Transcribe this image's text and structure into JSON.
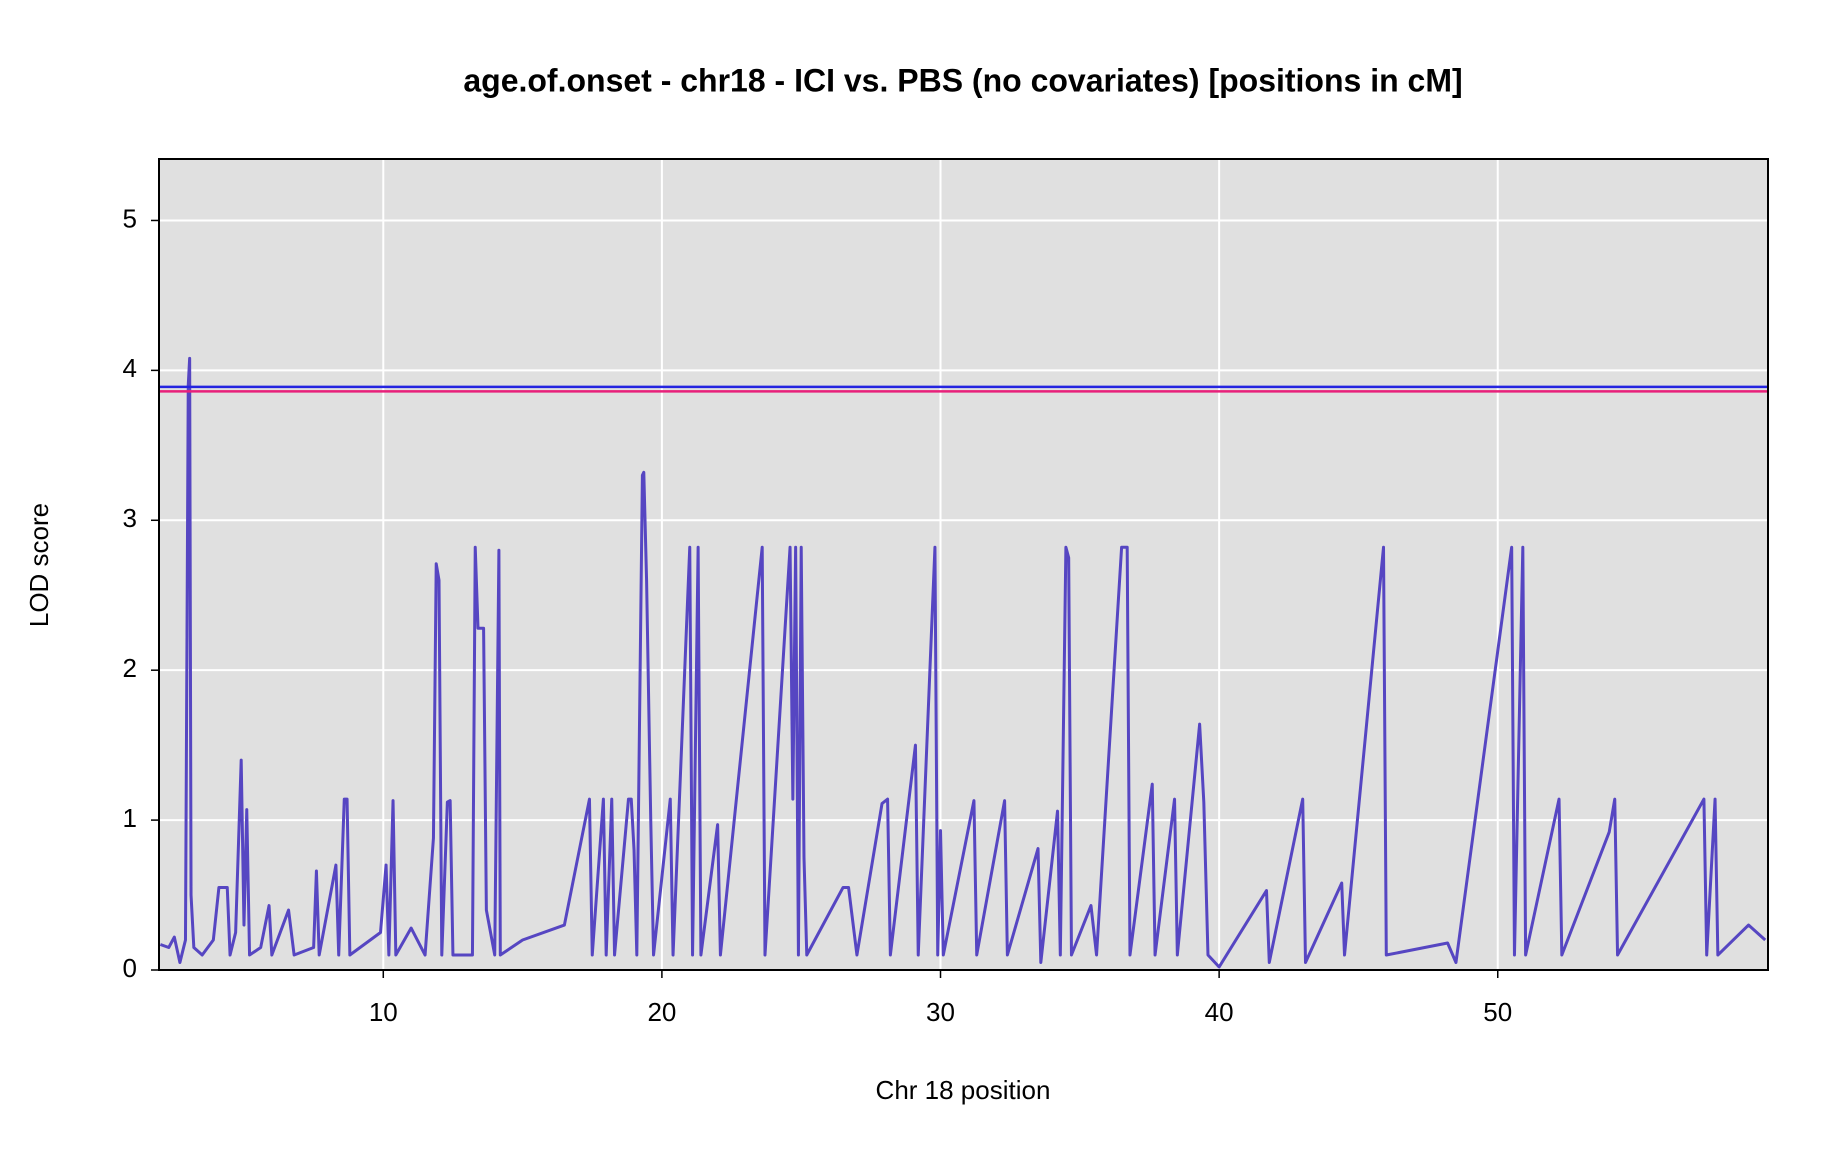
{
  "chart_data": {
    "type": "line",
    "title": "age.of.onset - chr18 - ICI vs. PBS (no covariates) [positions in cM]",
    "x_label": "Chr 18 position",
    "y_label": "LOD score",
    "color": "#5646c2",
    "x": [
      2.0,
      2.3,
      2.5,
      2.7,
      2.9,
      3.0,
      3.05,
      3.1,
      3.2,
      3.5,
      3.9,
      4.1,
      4.4,
      4.5,
      4.7,
      4.9,
      5.0,
      5.1,
      5.2,
      5.6,
      5.9,
      6.0,
      6.6,
      6.8,
      7.5,
      7.6,
      7.7,
      8.3,
      8.4,
      8.6,
      8.7,
      8.8,
      9.9,
      10.1,
      10.2,
      10.35,
      10.45,
      11.0,
      11.5,
      11.8,
      11.9,
      12.0,
      12.1,
      12.3,
      12.4,
      12.5,
      13.2,
      13.3,
      13.4,
      13.6,
      13.7,
      14.0,
      14.1,
      14.15,
      14.2,
      15.0,
      16.5,
      17.4,
      17.5,
      17.9,
      18.0,
      18.2,
      18.3,
      18.8,
      18.9,
      19.0,
      19.1,
      19.3,
      19.35,
      19.45,
      19.6,
      19.7,
      20.3,
      20.4,
      21.0,
      21.1,
      21.3,
      21.4,
      22.0,
      22.1,
      23.6,
      23.7,
      24.6,
      24.7,
      24.8,
      24.9,
      25.0,
      25.1,
      25.2,
      26.5,
      26.7,
      27.0,
      27.9,
      28.1,
      28.2,
      29.1,
      29.2,
      29.8,
      29.9,
      30.0,
      30.1,
      31.2,
      31.3,
      32.3,
      32.4,
      33.5,
      33.6,
      34.2,
      34.3,
      34.5,
      34.6,
      34.7,
      35.4,
      35.6,
      36.5,
      36.7,
      36.8,
      37.6,
      37.7,
      38.4,
      38.5,
      39.3,
      39.45,
      39.6,
      40.0,
      41.7,
      41.8,
      43.0,
      43.1,
      44.4,
      44.5,
      45.9,
      46.0,
      48.2,
      48.5,
      50.5,
      50.6,
      50.9,
      51.0,
      52.2,
      52.3,
      54.0,
      54.2,
      54.3,
      57.4,
      57.5,
      57.8,
      57.9,
      59.0,
      59.6
    ],
    "values": [
      0.17,
      0.15,
      0.22,
      0.05,
      0.2,
      3.9,
      4.08,
      0.5,
      0.15,
      0.1,
      0.2,
      0.55,
      0.55,
      0.1,
      0.25,
      1.4,
      0.3,
      1.07,
      0.1,
      0.15,
      0.43,
      0.1,
      0.4,
      0.1,
      0.15,
      0.66,
      0.1,
      0.7,
      0.1,
      1.14,
      1.14,
      0.1,
      0.25,
      0.7,
      0.1,
      1.13,
      0.1,
      0.28,
      0.1,
      0.88,
      2.71,
      2.6,
      0.1,
      1.12,
      1.13,
      0.1,
      0.1,
      2.82,
      2.28,
      2.28,
      0.4,
      0.1,
      1.9,
      2.8,
      0.1,
      0.2,
      0.3,
      1.14,
      0.1,
      1.14,
      0.1,
      1.14,
      0.1,
      1.14,
      1.14,
      0.8,
      0.1,
      3.3,
      3.32,
      2.6,
      1.0,
      0.1,
      1.14,
      0.1,
      2.82,
      0.1,
      2.82,
      0.1,
      0.97,
      0.1,
      2.82,
      0.1,
      2.82,
      1.14,
      2.82,
      0.1,
      2.82,
      0.75,
      0.1,
      0.55,
      0.55,
      0.1,
      1.11,
      1.14,
      0.1,
      1.5,
      0.1,
      2.82,
      0.1,
      0.93,
      0.1,
      1.13,
      0.1,
      1.13,
      0.1,
      0.81,
      0.05,
      1.06,
      0.1,
      2.82,
      2.75,
      0.1,
      0.43,
      0.1,
      2.82,
      2.82,
      0.1,
      1.24,
      0.1,
      1.14,
      0.1,
      1.64,
      1.12,
      0.1,
      0.02,
      0.53,
      0.05,
      1.14,
      0.05,
      0.58,
      0.1,
      2.82,
      0.1,
      0.18,
      0.05,
      2.82,
      0.1,
      2.82,
      0.1,
      1.14,
      0.1,
      0.92,
      1.14,
      0.1,
      1.14,
      0.1,
      1.14,
      0.1,
      0.3,
      0.2
    ],
    "thresholds": [
      {
        "value": 3.89,
        "color": "#2424e0"
      },
      {
        "value": 3.86,
        "color": "#e8207a"
      }
    ],
    "xlim": [
      1.95,
      59.7
    ],
    "ylim": [
      0,
      5.41
    ],
    "xticks": [
      10,
      20,
      30,
      40,
      50
    ],
    "yticks": [
      0,
      1,
      2,
      3,
      4,
      5
    ],
    "grid": true
  }
}
